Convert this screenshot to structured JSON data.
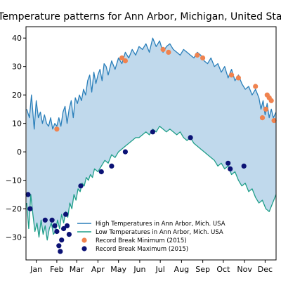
{
  "chart_data": {
    "type": "line",
    "title": "Temperature patterns for Ann Arbor, Michigan, United States",
    "xlabel": "",
    "ylabel": "",
    "xlim": [
      0,
      365
    ],
    "ylim": [
      -38,
      44
    ],
    "grid": false,
    "legend_position": "lower-center",
    "x_tick_labels": [
      "Jan",
      "Feb",
      "Mar",
      "Apr",
      "May",
      "Jun",
      "Jul",
      "Aug",
      "Sep",
      "Oct",
      "Nov",
      "Dec"
    ],
    "x_tick_positions": [
      15,
      45,
      74,
      105,
      135,
      166,
      196,
      227,
      258,
      288,
      319,
      349
    ],
    "y_ticks": [
      -30,
      -20,
      -10,
      0,
      10,
      20,
      30,
      40
    ],
    "fill_between": {
      "color": "#c0d9ec",
      "between": [
        "High Temperatures in Ann Arbor, Mich. USA",
        "Low Temperatures in Ann Arbor, Mich. USA"
      ]
    },
    "series": [
      {
        "name": "High Temperatures in Ann Arbor, Mich. USA",
        "kind": "line",
        "color": "#2a7fba",
        "x": [
          1,
          5,
          8,
          12,
          15,
          18,
          21,
          24,
          27,
          30,
          33,
          36,
          39,
          42,
          45,
          48,
          51,
          54,
          57,
          60,
          63,
          66,
          69,
          72,
          75,
          78,
          81,
          84,
          87,
          90,
          93,
          96,
          99,
          102,
          105,
          108,
          111,
          114,
          117,
          120,
          125,
          130,
          135,
          140,
          145,
          150,
          155,
          160,
          165,
          170,
          175,
          180,
          185,
          190,
          195,
          200,
          205,
          210,
          215,
          220,
          225,
          230,
          235,
          240,
          245,
          250,
          255,
          260,
          265,
          270,
          275,
          280,
          285,
          290,
          295,
          300,
          305,
          310,
          315,
          320,
          325,
          330,
          335,
          340,
          343,
          346,
          349,
          352,
          355,
          358,
          361,
          365
        ],
        "y": [
          15,
          12,
          20,
          8,
          18,
          12,
          14,
          10,
          13,
          10,
          9,
          12,
          8,
          10,
          9,
          12,
          9,
          14,
          16,
          10,
          15,
          18,
          12,
          19,
          17,
          20,
          18,
          22,
          20,
          25,
          27,
          21,
          28,
          24,
          27,
          29,
          25,
          31,
          30,
          27,
          32,
          29,
          33,
          31,
          35,
          33,
          36,
          34,
          37,
          36,
          38,
          35,
          40,
          37,
          39,
          35,
          37,
          38,
          36,
          35,
          34,
          36,
          35,
          34,
          33,
          35,
          34,
          32,
          31,
          33,
          30,
          31,
          28,
          30,
          26,
          29,
          25,
          27,
          24,
          22,
          23,
          20,
          22,
          19,
          15,
          18,
          13,
          17,
          12,
          15,
          12,
          14
        ]
      },
      {
        "name": "Low Temperatures in Ann Arbor, Mich. USA",
        "kind": "line",
        "color": "#1f9e89",
        "x": [
          1,
          4,
          7,
          10,
          13,
          16,
          19,
          22,
          25,
          28,
          31,
          34,
          37,
          40,
          43,
          46,
          49,
          52,
          55,
          58,
          61,
          64,
          67,
          70,
          73,
          76,
          79,
          82,
          85,
          88,
          91,
          94,
          97,
          100,
          105,
          110,
          115,
          120,
          125,
          130,
          135,
          140,
          145,
          150,
          155,
          160,
          165,
          170,
          175,
          180,
          185,
          190,
          195,
          200,
          205,
          210,
          215,
          220,
          225,
          230,
          235,
          240,
          245,
          250,
          255,
          260,
          265,
          270,
          275,
          280,
          285,
          290,
          295,
          300,
          305,
          310,
          315,
          320,
          325,
          330,
          335,
          340,
          345,
          350,
          355,
          360,
          365
        ],
        "y": [
          -18,
          -27,
          -15,
          -22,
          -28,
          -25,
          -30,
          -24,
          -29,
          -26,
          -31,
          -27,
          -25,
          -29,
          -28,
          -24,
          -27,
          -22,
          -25,
          -21,
          -23,
          -18,
          -20,
          -15,
          -17,
          -13,
          -14,
          -11,
          -12,
          -9,
          -10,
          -8,
          -9,
          -6,
          -7,
          -5,
          -3,
          -4,
          -1,
          -2,
          0,
          1,
          2,
          3,
          4,
          5,
          5,
          6,
          7,
          6,
          8,
          7,
          9,
          8,
          7,
          8,
          7,
          6,
          7,
          5,
          4,
          5,
          3,
          2,
          1,
          0,
          -1,
          -2,
          -3,
          -5,
          -4,
          -6,
          -5,
          -8,
          -7,
          -10,
          -12,
          -11,
          -14,
          -13,
          -16,
          -18,
          -17,
          -20,
          -21,
          -18,
          -15
        ]
      },
      {
        "name": "Record Break Minimum (2015)",
        "kind": "scatter",
        "color": "#f0834f",
        "x": [
          45,
          140,
          145,
          200,
          208,
          250,
          258,
          300,
          310,
          335,
          345,
          350,
          352,
          355,
          358,
          362
        ],
        "y": [
          8,
          33,
          32,
          36,
          35,
          34,
          33,
          27,
          26,
          23,
          12,
          15,
          20,
          19,
          18,
          11
        ]
      },
      {
        "name": "Record Break Maximum (2015)",
        "kind": "scatter",
        "color": "#0b1275",
        "x": [
          3,
          6,
          28,
          38,
          42,
          45,
          48,
          50,
          52,
          55,
          58,
          60,
          63,
          80,
          110,
          125,
          145,
          185,
          240,
          295,
          298,
          318
        ],
        "y": [
          -15,
          -20,
          -24,
          -24,
          -26,
          -28,
          -33,
          -35,
          -31,
          -27,
          -22,
          -26,
          -29,
          -12,
          -7,
          -5,
          0,
          7,
          5,
          -4,
          -6,
          -5
        ]
      }
    ]
  }
}
